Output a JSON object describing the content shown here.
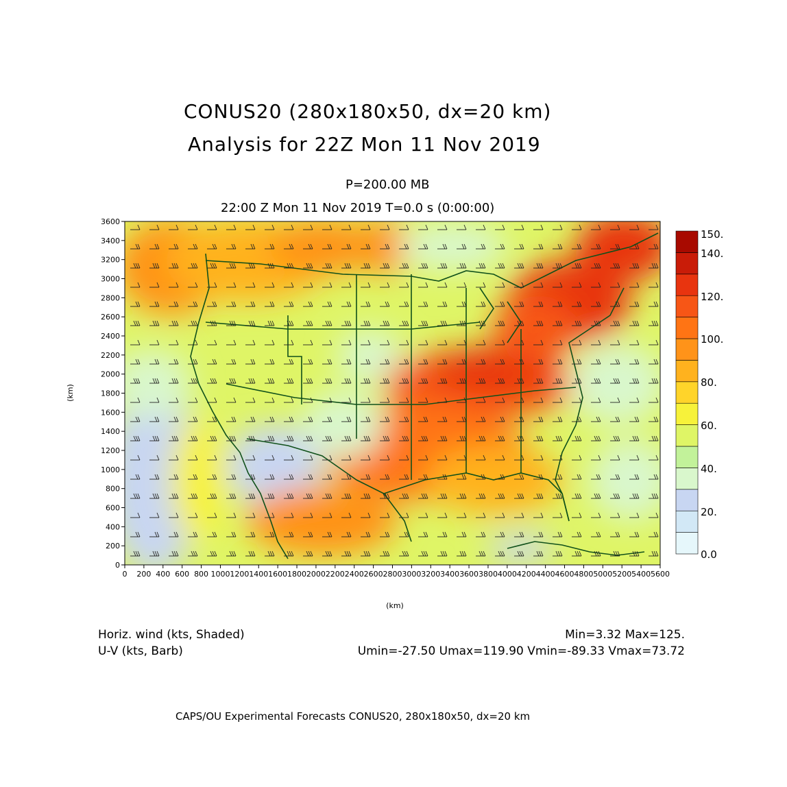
{
  "header": {
    "title_line1": "CONUS20 (280x180x50, dx=20 km)",
    "title_line2": "Analysis for 22Z Mon 11 Nov 2019",
    "level": "P=200.00 MB",
    "time": "22:00 Z Mon 11 Nov 2019    T=0.0 s (0:00:00)"
  },
  "map": {
    "x_ticks": [
      "0",
      "200",
      "400",
      "600",
      "800",
      "1000",
      "1200",
      "1400",
      "1600",
      "1800",
      "2000",
      "2200",
      "2400",
      "2600",
      "2800",
      "3000",
      "3200",
      "3400",
      "3600",
      "3800",
      "4000",
      "4200",
      "4400",
      "4600",
      "4800",
      "5000",
      "5200",
      "5400",
      "5600"
    ],
    "y_ticks": [
      "0",
      "200",
      "400",
      "600",
      "800",
      "1000",
      "1200",
      "1400",
      "1600",
      "1800",
      "2000",
      "2200",
      "2400",
      "2600",
      "2800",
      "3000",
      "3200",
      "3400",
      "3600"
    ],
    "x_unit": "(km)",
    "y_unit": "(km)"
  },
  "colorbar": {
    "labels": [
      "0.0",
      "20.",
      "40.",
      "60.",
      "80.",
      "100.",
      "120.",
      "140.",
      "150."
    ],
    "colors": [
      "#e6f7fb",
      "#d2e8f6",
      "#c8d6f2",
      "#d9f7cc",
      "#c2f29a",
      "#dff566",
      "#f7f23a",
      "#ffd42a",
      "#ffb21e",
      "#ff9319",
      "#ff7414",
      "#f75616",
      "#e8340f",
      "#c91c08",
      "#a80a00"
    ]
  },
  "legend": {
    "left_line1": "Horiz. wind (kts, Shaded)",
    "left_line2": "U-V (kts, Barb)",
    "right_line1": "Min=3.32 Max=125.",
    "right_line2": "Umin=-27.50 Umax=119.90 Vmin=-89.33 Vmax=73.72"
  },
  "footer": "CAPS/OU Experimental Forecasts   CONUS20, 280x180x50, dx=20 km"
}
